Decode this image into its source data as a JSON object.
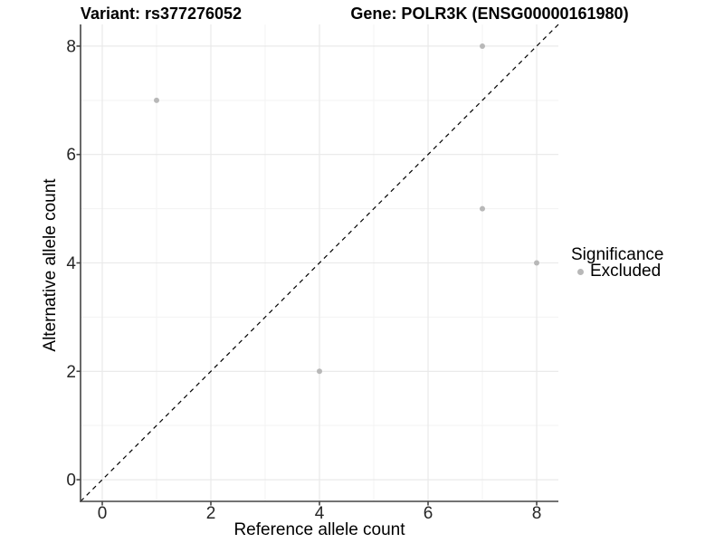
{
  "chart_data": {
    "type": "scatter",
    "titles": {
      "left": "Variant: rs377276052",
      "right": "Gene: POLR3K (ENSG00000161980)"
    },
    "xlabel": "Reference allele count",
    "ylabel": "Alternative allele count",
    "xlim": [
      -0.4,
      8.4
    ],
    "ylim": [
      -0.4,
      8.4
    ],
    "x_ticks": [
      0,
      2,
      4,
      6,
      8
    ],
    "y_ticks": [
      0,
      2,
      4,
      6,
      8
    ],
    "grid": {
      "major_at": [
        0,
        2,
        4,
        6,
        8
      ],
      "minor_at": [
        1,
        3,
        5,
        7
      ],
      "visible": true
    },
    "identity_line": {
      "equation": "y = x",
      "style": "dashed",
      "color": "#000000",
      "from": [
        -0.4,
        -0.4
      ],
      "to": [
        8.4,
        8.4
      ]
    },
    "series": [
      {
        "name": "Excluded",
        "color": "#b8b8b8",
        "points": [
          [
            1,
            7
          ],
          [
            4,
            2
          ],
          [
            7,
            5
          ],
          [
            7,
            8
          ],
          [
            8,
            4
          ]
        ]
      }
    ],
    "legend": {
      "title": "Significance",
      "position": "right",
      "items": [
        {
          "label": "Excluded",
          "color": "#b8b8b8"
        }
      ]
    }
  },
  "colors": {
    "background": "#ffffff",
    "point": "#b8b8b8",
    "grid_major": "#e8e8e8",
    "grid_minor": "#f3f3f3",
    "axis": "#454545",
    "tick_text": "#262626",
    "title_text": "#000000"
  }
}
